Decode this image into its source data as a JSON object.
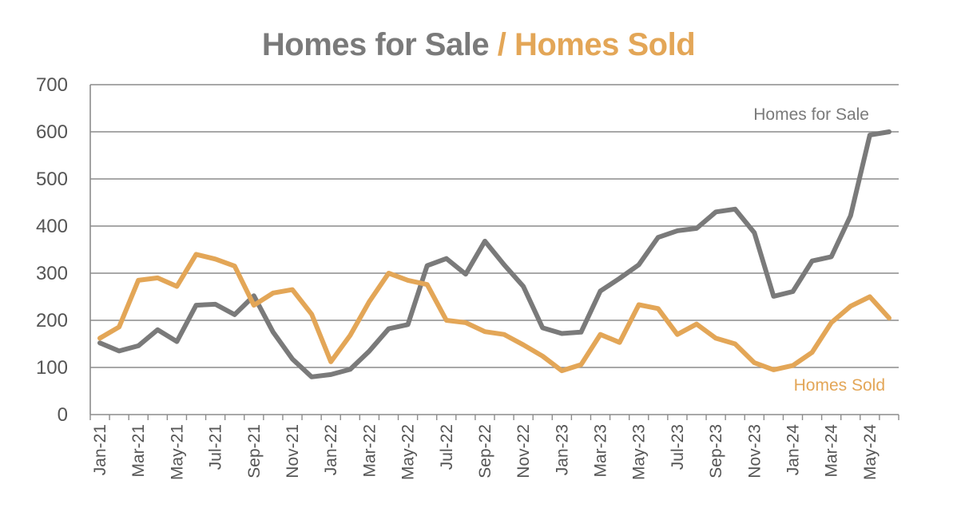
{
  "colors": {
    "sale": "#7a7a7a",
    "sold": "#e3a657",
    "grid": "#8c8c8c",
    "text": "#555555"
  },
  "chart_data": {
    "type": "line",
    "title_part1": "Homes for Sale",
    "title_sep": "/",
    "title_part2": "Homes Sold",
    "ylim": [
      0,
      700
    ],
    "yticks": [
      0,
      100,
      200,
      300,
      400,
      500,
      600,
      700
    ],
    "grid": true,
    "x": [
      "Jan-21",
      "Feb-21",
      "Mar-21",
      "Apr-21",
      "May-21",
      "Jun-21",
      "Jul-21",
      "Aug-21",
      "Sep-21",
      "Oct-21",
      "Nov-21",
      "Dec-21",
      "Jan-22",
      "Feb-22",
      "Mar-22",
      "Apr-22",
      "May-22",
      "Jun-22",
      "Jul-22",
      "Aug-22",
      "Sep-22",
      "Oct-22",
      "Nov-22",
      "Dec-22",
      "Jan-23",
      "Feb-23",
      "Mar-23",
      "Apr-23",
      "May-23",
      "Jun-23",
      "Jul-23",
      "Aug-23",
      "Sep-23",
      "Oct-23",
      "Nov-23",
      "Dec-23",
      "Jan-24",
      "Feb-24",
      "Mar-24",
      "Apr-24",
      "May-24",
      "Jun-24"
    ],
    "xtick_labels": [
      "Jan-21",
      "Mar-21",
      "May-21",
      "Jul-21",
      "Sep-21",
      "Nov-21",
      "Jan-22",
      "Mar-22",
      "May-22",
      "Jul-22",
      "Sep-22",
      "Nov-22",
      "Jan-23",
      "Mar-23",
      "May-23",
      "Jul-23",
      "Sep-23",
      "Nov-23",
      "Jan-24",
      "Mar-24",
      "May-24"
    ],
    "series": [
      {
        "name": "Homes for Sale",
        "color": "#7a7a7a",
        "values": [
          152,
          135,
          146,
          180,
          155,
          232,
          234,
          212,
          252,
          175,
          118,
          80,
          85,
          96,
          135,
          182,
          191,
          316,
          331,
          298,
          368,
          318,
          272,
          184,
          172,
          175,
          262,
          289,
          318,
          376,
          390,
          395,
          430,
          436,
          386,
          251,
          261,
          326,
          335,
          422,
          593,
          600
        ]
      },
      {
        "name": "Homes Sold",
        "color": "#e3a657",
        "values": [
          162,
          186,
          285,
          290,
          272,
          340,
          330,
          315,
          232,
          258,
          265,
          213,
          112,
          168,
          240,
          300,
          285,
          276,
          200,
          195,
          176,
          170,
          148,
          124,
          93,
          106,
          170,
          153,
          233,
          225,
          170,
          192,
          162,
          150,
          110,
          95,
          104,
          132,
          195,
          230,
          250,
          205
        ]
      }
    ]
  }
}
